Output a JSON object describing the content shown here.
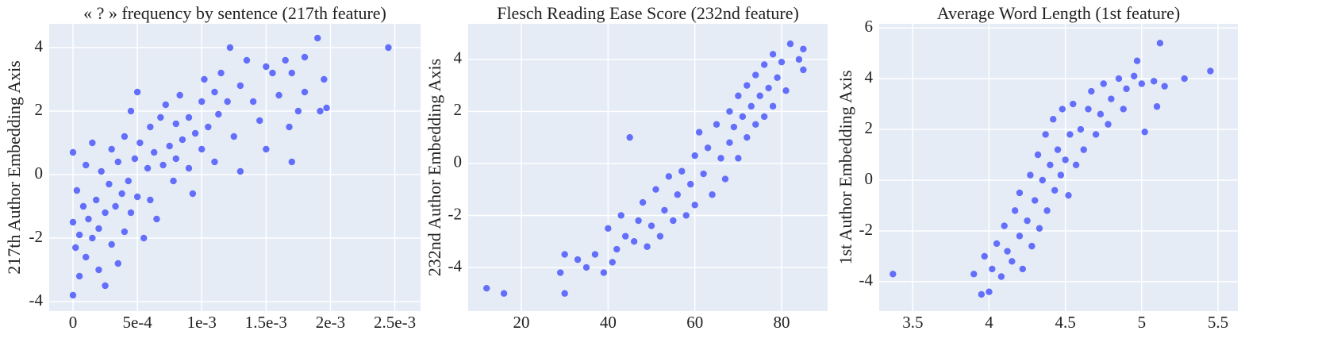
{
  "chart_data": [
    {
      "type": "scatter",
      "title": "« ? » frequency by sentence (217th feature)",
      "y_label": "217th Author Embedding Axis",
      "color": "#636efa",
      "grid": true,
      "xlim": [
        -0.000185,
        0.0027
      ],
      "ylim": [
        -4.3,
        4.75
      ],
      "xticks": [
        0,
        {
          "value": 0.0005,
          "label": "5e-4"
        },
        {
          "value": 0.001,
          "label": "1e-3"
        },
        {
          "value": 0.0015,
          "label": "1.5e-3"
        },
        {
          "value": 0.002,
          "label": "2e-3"
        },
        {
          "value": 0.0025,
          "label": "2.5e-3"
        }
      ],
      "yticks": [
        -4,
        -2,
        0,
        2,
        4
      ],
      "x": [
        0,
        0,
        0,
        2e-05,
        3e-05,
        5e-05,
        5e-05,
        8e-05,
        0.0001,
        0.0001,
        0.00012,
        0.00015,
        0.00015,
        0.00018,
        0.0002,
        0.0002,
        0.00022,
        0.00025,
        0.00025,
        0.00028,
        0.0003,
        0.0003,
        0.00033,
        0.00035,
        0.00035,
        0.00038,
        0.0004,
        0.0004,
        0.00043,
        0.00045,
        0.00045,
        0.00048,
        0.0005,
        0.0005,
        0.00052,
        0.00055,
        0.00058,
        0.0006,
        0.0006,
        0.00063,
        0.00065,
        0.00068,
        0.0007,
        0.00072,
        0.00075,
        0.00078,
        0.0008,
        0.0008,
        0.00083,
        0.00085,
        0.0009,
        0.0009,
        0.00093,
        0.00095,
        0.001,
        0.001,
        0.00102,
        0.00105,
        0.0011,
        0.0011,
        0.00113,
        0.00115,
        0.0012,
        0.00122,
        0.00125,
        0.0013,
        0.0013,
        0.00135,
        0.0014,
        0.00145,
        0.0015,
        0.0015,
        0.00155,
        0.0016,
        0.00165,
        0.00168,
        0.0017,
        0.0017,
        0.00175,
        0.0018,
        0.0018,
        0.0019,
        0.00192,
        0.00195,
        0.00197,
        0.00245
      ],
      "values": [
        0.7,
        -3.8,
        -1.5,
        -2.3,
        -0.5,
        -1.9,
        -3.2,
        -1,
        -2.6,
        0.3,
        -1.4,
        -2,
        1,
        -0.8,
        -3,
        -1.7,
        0.1,
        -1.2,
        -3.5,
        -0.3,
        -2.2,
        0.8,
        -1,
        -2.8,
        0.4,
        -0.6,
        1.2,
        -1.8,
        -0.2,
        2,
        -1.2,
        0.5,
        -0.7,
        2.6,
        1,
        -2,
        0.2,
        1.5,
        -0.8,
        0.7,
        -1.4,
        1.8,
        0.3,
        2.2,
        0.9,
        -0.2,
        1.6,
        0.5,
        2.5,
        1.1,
        0.2,
        1.8,
        -0.6,
        1.3,
        2.3,
        0.8,
        3,
        1.5,
        2.6,
        0.4,
        1.9,
        3.2,
        2.3,
        4,
        1.2,
        0.1,
        2.8,
        3.6,
        2.3,
        1.7,
        3.4,
        0.8,
        3.2,
        2.5,
        3.6,
        1.5,
        3.2,
        0.4,
        2,
        3.7,
        2.6,
        4.3,
        2,
        3,
        2.1,
        4
      ]
    },
    {
      "type": "scatter",
      "title": "Flesch Reading Ease Score (232nd feature)",
      "y_label": "232nd Author Embedding Axis",
      "color": "#636efa",
      "grid": true,
      "xlim": [
        7.75,
        90.6
      ],
      "ylim": [
        -5.68,
        5.37
      ],
      "xticks": [
        20,
        40,
        60,
        80
      ],
      "yticks": [
        -4,
        -2,
        0,
        2,
        4
      ],
      "x": [
        12,
        16,
        29,
        30,
        30,
        33,
        35,
        37,
        39,
        40,
        41,
        42,
        43,
        44,
        45,
        46,
        47,
        48,
        49,
        50,
        51,
        52,
        53,
        54,
        55,
        56,
        57,
        58,
        59,
        60,
        60,
        61,
        62,
        63,
        64,
        65,
        66,
        67,
        68,
        68,
        69,
        70,
        70,
        71,
        72,
        72,
        73,
        74,
        74,
        75,
        76,
        76,
        77,
        78,
        78,
        79,
        80,
        81,
        82,
        84,
        85,
        85
      ],
      "values": [
        -4.8,
        -5,
        -4.2,
        -5,
        -3.5,
        -3.7,
        -4,
        -3.5,
        -4.2,
        -2.5,
        -3.8,
        -3.3,
        -2,
        -2.8,
        1,
        -3,
        -2.2,
        -1.5,
        -3.2,
        -2.4,
        -1,
        -2.8,
        -1.8,
        -0.5,
        -2.2,
        -1.2,
        -0.3,
        -2,
        -0.8,
        0.3,
        -1.6,
        1.2,
        -0.4,
        0.6,
        -1.2,
        1.5,
        0.2,
        -0.6,
        2,
        0.8,
        1.4,
        2.6,
        0.2,
        1.8,
        3,
        1,
        2.2,
        3.4,
        1.5,
        2.6,
        3.8,
        1.8,
        2.9,
        4.2,
        2.2,
        3.3,
        3.9,
        2.8,
        4.6,
        4,
        3.6,
        4.4
      ]
    },
    {
      "type": "scatter",
      "title": "Average Word Length (1st feature)",
      "y_label": "1st Author Embedding Axis",
      "color": "#636efa",
      "grid": true,
      "xlim": [
        3.28,
        5.63
      ],
      "ylim": [
        -5.16,
        6.16
      ],
      "xticks": [
        3.5,
        4,
        4.5,
        5,
        5.5
      ],
      "yticks": [
        -4,
        -2,
        0,
        2,
        4,
        6
      ],
      "x": [
        3.37,
        3.9,
        3.95,
        3.97,
        4,
        4.02,
        4.05,
        4.08,
        4.1,
        4.12,
        4.15,
        4.17,
        4.2,
        4.2,
        4.22,
        4.25,
        4.27,
        4.28,
        4.3,
        4.32,
        4.33,
        4.35,
        4.37,
        4.38,
        4.4,
        4.42,
        4.43,
        4.45,
        4.47,
        4.48,
        4.5,
        4.52,
        4.53,
        4.55,
        4.57,
        4.6,
        4.62,
        4.65,
        4.67,
        4.7,
        4.73,
        4.75,
        4.78,
        4.8,
        4.85,
        4.88,
        4.9,
        4.95,
        4.97,
        5,
        5.02,
        5.08,
        5.1,
        5.12,
        5.15,
        5.28,
        5.45
      ],
      "values": [
        -3.7,
        -3.7,
        -4.5,
        -3,
        -4.4,
        -3.5,
        -2.5,
        -3.8,
        -1.8,
        -2.8,
        -3.2,
        -1.2,
        -2.2,
        -0.5,
        -3.5,
        -1.6,
        0.2,
        -2.6,
        -0.8,
        1,
        -1.9,
        0,
        1.8,
        -1.2,
        0.6,
        2.4,
        -0.4,
        1.2,
        0.2,
        2.8,
        0.8,
        -0.6,
        1.8,
        3,
        0.6,
        2,
        1.2,
        2.8,
        3.5,
        1.8,
        2.6,
        3.8,
        2.2,
        3.2,
        4,
        2.8,
        3.6,
        4.1,
        4.7,
        3.8,
        1.9,
        3.9,
        2.9,
        5.4,
        3.7,
        4,
        4.3
      ]
    }
  ]
}
